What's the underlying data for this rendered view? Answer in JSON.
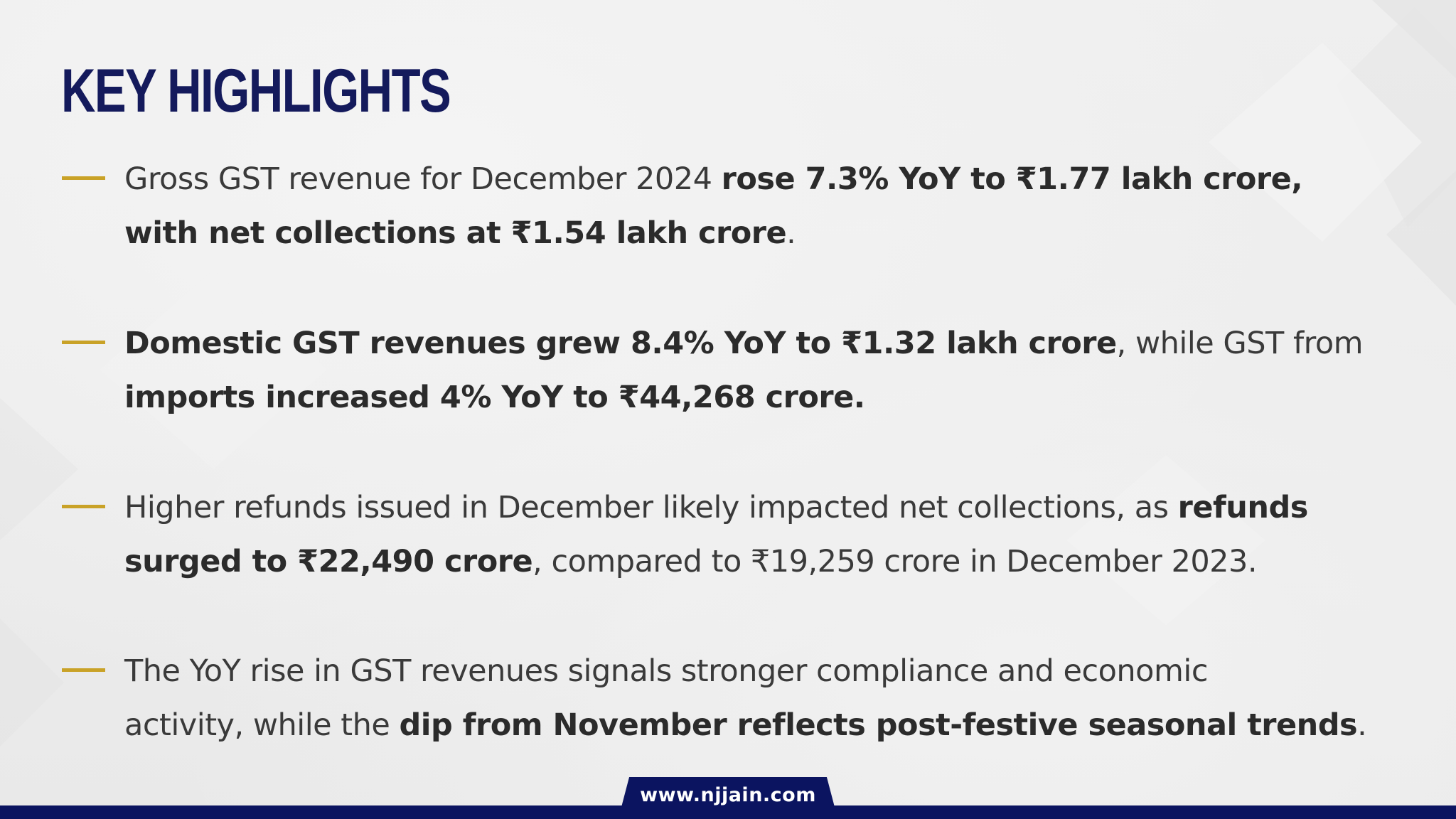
{
  "title": "KEY HIGHLIGHTS",
  "bullets": [
    [
      {
        "t": "Gross GST revenue for December 2024 ",
        "b": false
      },
      {
        "t": "rose 7.3% YoY to ₹1.77 lakh crore,",
        "b": true
      },
      {
        "br": true
      },
      {
        "t": "with net collections at ₹1.54 lakh crore",
        "b": true
      },
      {
        "t": ".",
        "b": false
      }
    ],
    [
      {
        "t": "Domestic GST revenues grew 8.4% YoY to ₹1.32 lakh crore",
        "b": true
      },
      {
        "t": ", while GST from",
        "b": false
      },
      {
        "br": true
      },
      {
        "t": "imports increased 4% YoY to ₹44,268 crore.",
        "b": true
      }
    ],
    [
      {
        "t": "Higher refunds issued in December likely impacted net collections, as ",
        "b": false
      },
      {
        "t": "refunds",
        "b": true
      },
      {
        "br": true
      },
      {
        "t": "surged to ₹22,490 crore",
        "b": true
      },
      {
        "t": ", compared to ₹19,259 crore in December 2023.",
        "b": false
      }
    ],
    [
      {
        "t": "The YoY rise in GST revenues signals stronger compliance and economic",
        "b": false
      },
      {
        "br": true
      },
      {
        "t": "activity, while the ",
        "b": false
      },
      {
        "t": "dip from November reflects post-festive seasonal trends",
        "b": true
      },
      {
        "t": ".",
        "b": false
      }
    ]
  ],
  "footer": {
    "url": "www.njjain.com"
  },
  "colors": {
    "title": "#141a5c",
    "dash": "#c9a227",
    "text": "#3a3a3a",
    "footer": "#0b1460"
  }
}
